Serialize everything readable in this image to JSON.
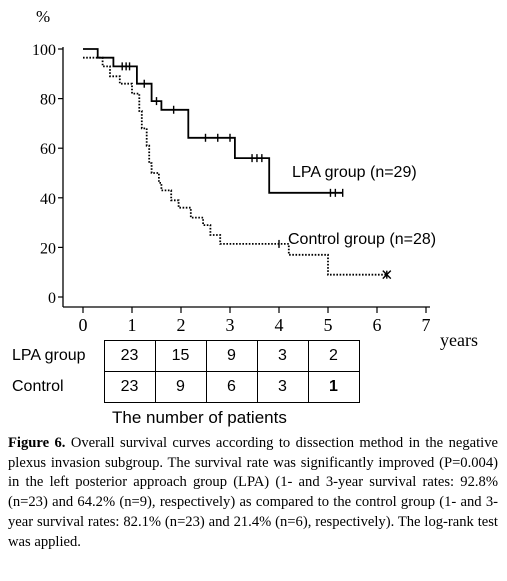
{
  "chart_data": {
    "type": "line",
    "y_unit": "%",
    "xlabel": "years",
    "xlim": [
      0,
      7
    ],
    "ylim": [
      0,
      100
    ],
    "x_ticks": [
      "0",
      "1",
      "2",
      "3",
      "4",
      "5",
      "6",
      "7"
    ],
    "y_ticks": [
      "0",
      "20",
      "40",
      "60",
      "80",
      "100"
    ],
    "series": [
      {
        "name": "LPA group (n=29)",
        "style": "solid",
        "color": "#000000",
        "steps": [
          [
            0,
            100
          ],
          [
            0.3,
            100
          ],
          [
            0.3,
            96.5
          ],
          [
            0.62,
            96.5
          ],
          [
            0.62,
            93
          ],
          [
            1.1,
            93
          ],
          [
            1.1,
            86
          ],
          [
            1.4,
            86
          ],
          [
            1.4,
            79
          ],
          [
            1.6,
            79
          ],
          [
            1.6,
            75.5
          ],
          [
            2.15,
            75.5
          ],
          [
            2.15,
            64.2
          ],
          [
            3.1,
            64.2
          ],
          [
            3.1,
            56
          ],
          [
            3.8,
            56
          ],
          [
            3.8,
            42
          ],
          [
            5.3,
            42
          ]
        ],
        "censored": [
          0.8,
          0.88,
          0.95,
          1.25,
          1.5,
          1.85,
          2.5,
          2.75,
          3.0,
          3.45,
          3.55,
          3.65,
          5.05,
          5.15,
          5.3
        ]
      },
      {
        "name": "Control group (n=28)",
        "style": "dotted",
        "color": "#000000",
        "steps": [
          [
            0,
            96.5
          ],
          [
            0.4,
            96.5
          ],
          [
            0.4,
            93
          ],
          [
            0.55,
            93
          ],
          [
            0.55,
            89
          ],
          [
            0.75,
            89
          ],
          [
            0.75,
            86
          ],
          [
            1.0,
            86
          ],
          [
            1.0,
            82
          ],
          [
            1.15,
            82
          ],
          [
            1.15,
            75
          ],
          [
            1.2,
            75
          ],
          [
            1.2,
            68
          ],
          [
            1.3,
            68
          ],
          [
            1.3,
            61
          ],
          [
            1.35,
            61
          ],
          [
            1.35,
            54
          ],
          [
            1.4,
            54
          ],
          [
            1.4,
            50
          ],
          [
            1.55,
            50
          ],
          [
            1.55,
            46
          ],
          [
            1.6,
            46
          ],
          [
            1.6,
            43
          ],
          [
            1.8,
            43
          ],
          [
            1.8,
            39
          ],
          [
            1.95,
            39
          ],
          [
            1.95,
            36
          ],
          [
            2.2,
            36
          ],
          [
            2.2,
            32
          ],
          [
            2.45,
            32
          ],
          [
            2.45,
            29
          ],
          [
            2.6,
            29
          ],
          [
            2.6,
            25
          ],
          [
            2.8,
            25
          ],
          [
            2.8,
            21.4
          ],
          [
            4.2,
            21.4
          ],
          [
            4.2,
            17
          ],
          [
            5.0,
            17
          ],
          [
            5.0,
            9
          ],
          [
            6.2,
            9
          ]
        ],
        "censored": [
          4.0,
          6.2
        ]
      }
    ]
  },
  "table": {
    "title": "The number of patients",
    "rows": [
      {
        "label": "LPA group",
        "values": [
          "23",
          "15",
          "9",
          "3",
          "2"
        ]
      },
      {
        "label": "Control",
        "values": [
          "23",
          "9",
          "6",
          "3",
          "1"
        ]
      }
    ]
  },
  "caption": {
    "label": "Figure 6.",
    "text": " Overall survival curves according to dissection method in the negative plexus invasion subgroup. The survival rate was significantly improved (P=0.004) in the left posterior approach group (LPA) (1- and 3-year survival rates: 92.8% (n=23) and 64.2% (n=9), respectively) as compared to the control group (1- and 3-year survival rates: 82.1% (n=23) and 21.4% (n=6), respectively). The log-rank test was applied."
  }
}
